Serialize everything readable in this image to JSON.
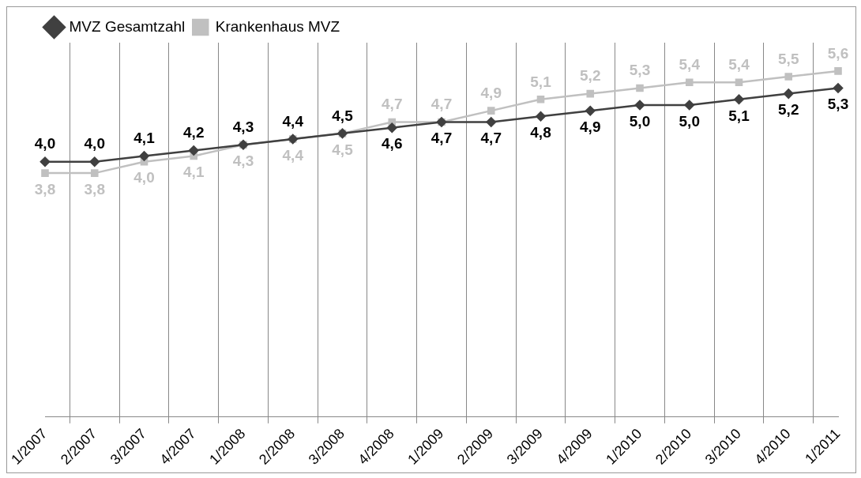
{
  "chart_data": {
    "type": "line",
    "categories": [
      "1/2007",
      "2/2007",
      "3/2007",
      "4/2007",
      "1/2008",
      "2/2008",
      "3/2008",
      "4/2008",
      "1/2009",
      "2/2009",
      "3/2009",
      "4/2009",
      "1/2010",
      "2/2010",
      "3/2010",
      "4/2010",
      "1/2011"
    ],
    "series": [
      {
        "name": "MVZ Gesamtzahl",
        "color": "#404040",
        "marker": "diamond",
        "values": [
          4.0,
          4.0,
          4.1,
          4.2,
          4.3,
          4.4,
          4.5,
          4.6,
          4.7,
          4.7,
          4.8,
          4.9,
          5.0,
          5.0,
          5.1,
          5.2,
          5.3
        ],
        "value_labels": [
          "4,0",
          "4,0",
          "4,1",
          "4,2",
          "4,3",
          "4,4",
          "4,5",
          "4,6",
          "4,7",
          "4,7",
          "4,8",
          "4,9",
          "5,0",
          "5,0",
          "5,1",
          "5,2",
          "5,3"
        ]
      },
      {
        "name": "Krankenhaus MVZ",
        "color": "#c0c0c0",
        "marker": "square",
        "values": [
          3.8,
          3.8,
          4.0,
          4.1,
          4.3,
          4.4,
          4.5,
          4.7,
          4.7,
          4.9,
          5.1,
          5.2,
          5.3,
          5.4,
          5.4,
          5.5,
          5.6
        ],
        "value_labels": [
          "3,8",
          "3,8",
          "4,0",
          "4,1",
          "4,3",
          "4,4",
          "4,5",
          "4,7",
          "4,7",
          "4,9",
          "5,1",
          "5,2",
          "5,3",
          "5,4",
          "5,4",
          "5,5",
          "5,6"
        ]
      }
    ],
    "ylim": [
      -0.5,
      6.1
    ],
    "grid": "x",
    "legend": "top left",
    "line_style": "solid"
  }
}
